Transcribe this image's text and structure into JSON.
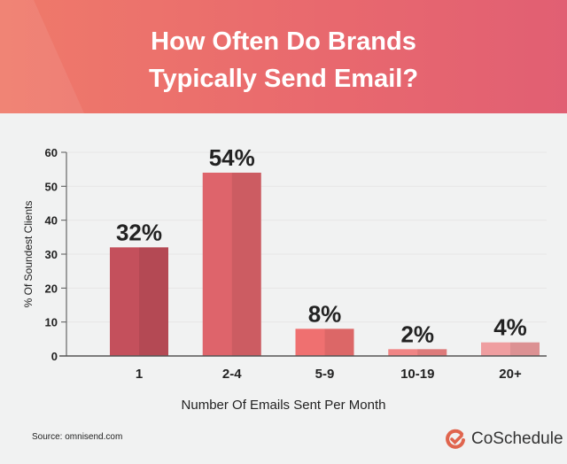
{
  "chart_data": {
    "type": "bar",
    "title": "How Often Do Brands Typically Send Email?",
    "title_lines": [
      "How Often Do Brands",
      "Typically Send Email?"
    ],
    "xlabel": "Number Of Emails Sent Per Month",
    "ylabel": "% Of Soundest Clients",
    "categories": [
      "1",
      "2-4",
      "5-9",
      "10-19",
      "20+"
    ],
    "values": [
      32,
      54,
      8,
      2,
      4
    ],
    "data_labels": [
      "32%",
      "54%",
      "8%",
      "2%",
      "4%"
    ],
    "ylim": [
      0,
      60
    ],
    "yticks": [
      0,
      10,
      20,
      30,
      40,
      50,
      60
    ],
    "grid": true,
    "bar_colors": [
      "#c4505c",
      "#de646b",
      "#ef7070",
      "#f08585",
      "#ef9ea0"
    ]
  },
  "footer": {
    "source": "Source: omnisend.com",
    "brand": "CoSchedule",
    "brand_color": "#e0654e"
  }
}
